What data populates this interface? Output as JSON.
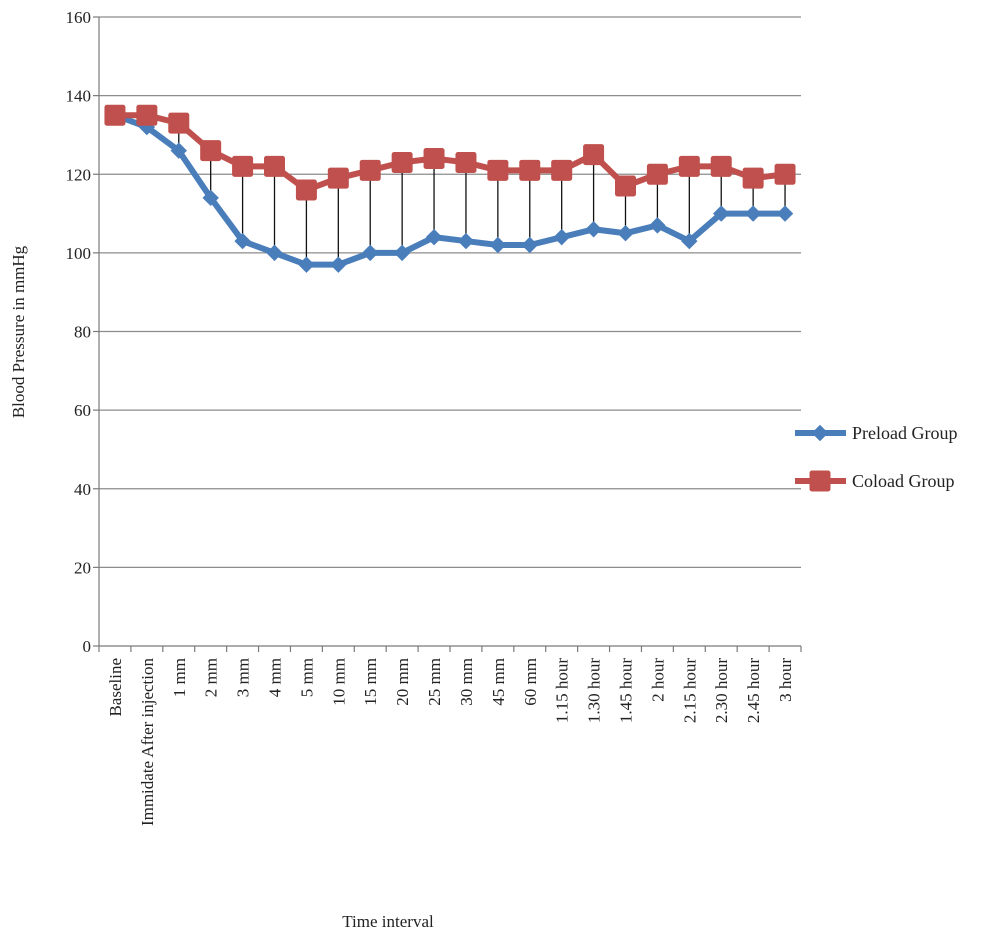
{
  "chart_data": {
    "type": "line",
    "xlabel": "Time interval",
    "ylabel": "Blood Pressure in mmHg",
    "ylim": [
      0,
      160
    ],
    "yticks": [
      0,
      20,
      40,
      60,
      80,
      100,
      120,
      140,
      160
    ],
    "grid": true,
    "legend": "right",
    "drop_lines": true,
    "categories": [
      "Baseline",
      "Immidate After injection",
      "1 mm",
      "2 mm",
      "3 mm",
      "4 mm",
      "5 mm",
      "10 mm",
      "15 mm",
      "20 mm",
      "25 mm",
      "30 mm",
      "45 mm",
      "60 mm",
      "1.15 hour",
      "1.30 hour",
      "1.45 hour",
      "2 hour",
      "2.15 hour",
      "2.30 hour",
      "2.45 hour",
      "3 hour"
    ],
    "series": [
      {
        "name": "Preload Group",
        "color": "#4a7ebb",
        "marker": "diamond",
        "values": [
          135,
          132,
          126,
          114,
          103,
          100,
          97,
          97,
          100,
          100,
          104,
          103,
          102,
          102,
          104,
          106,
          105,
          107,
          103,
          110,
          110,
          110
        ]
      },
      {
        "name": "Coload Group",
        "color": "#c0504d",
        "marker": "square",
        "values": [
          135,
          135,
          133,
          126,
          122,
          122,
          116,
          119,
          121,
          123,
          124,
          123,
          121,
          121,
          121,
          125,
          117,
          120,
          122,
          122,
          119,
          120
        ]
      }
    ]
  }
}
